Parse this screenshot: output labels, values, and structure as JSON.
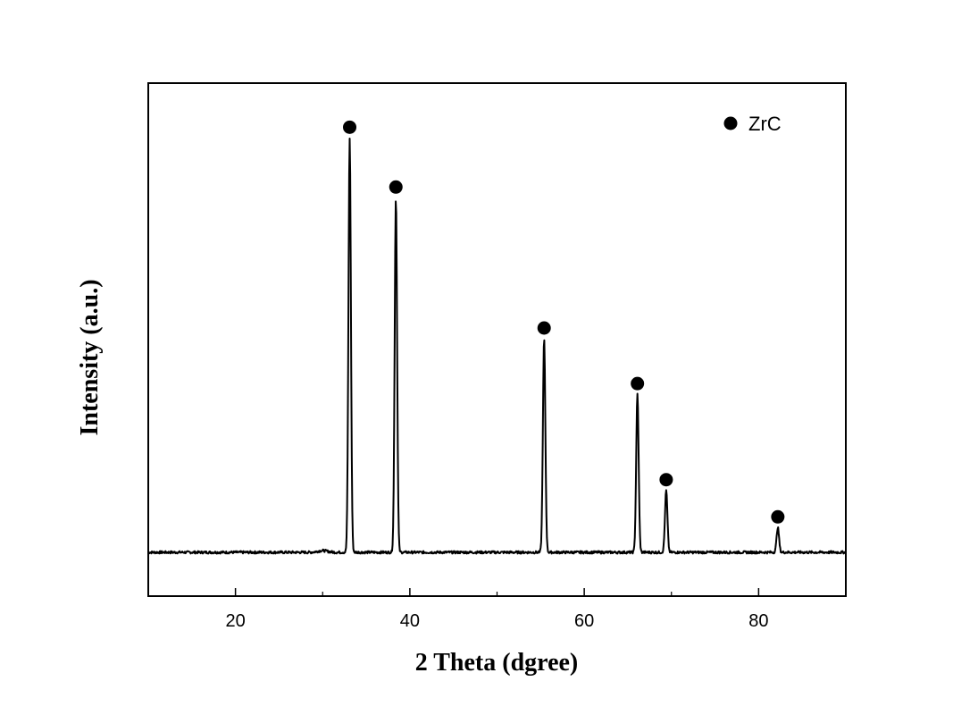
{
  "chart_data": {
    "type": "line",
    "xlabel": "2 Theta (dgree)",
    "ylabel": "Intensity (a.u.)",
    "xlim": [
      10,
      90
    ],
    "ylim": [
      -0.1,
      1.0
    ],
    "x_ticks": [
      20,
      40,
      60,
      80
    ],
    "x_minor_ticks": [
      30,
      50,
      70
    ],
    "y_ticks_shown": false,
    "grid": false,
    "baseline": 0.0,
    "legend": {
      "position": "top-right",
      "entries": [
        {
          "label": "ZrC",
          "marker": "filled-circle"
        }
      ]
    },
    "series": [
      {
        "name": "ZrC",
        "color": "#000000",
        "peaks": [
          {
            "two_theta": 33.1,
            "intensity": 0.97
          },
          {
            "two_theta": 38.4,
            "intensity": 0.83
          },
          {
            "two_theta": 55.4,
            "intensity": 0.5
          },
          {
            "two_theta": 66.1,
            "intensity": 0.37
          },
          {
            "two_theta": 69.4,
            "intensity": 0.145
          },
          {
            "two_theta": 82.2,
            "intensity": 0.058
          }
        ]
      }
    ]
  }
}
